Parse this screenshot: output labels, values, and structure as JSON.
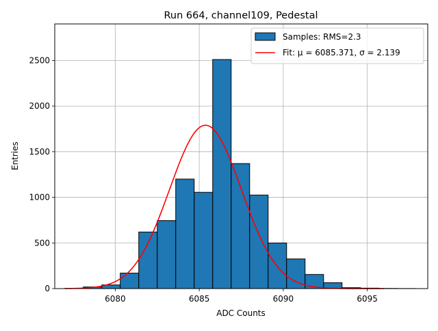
{
  "chart_data": {
    "type": "bar",
    "title": "Run 664, channel109, Pedestal",
    "xlabel": "ADC Counts",
    "ylabel": "Entries",
    "xlim": [
      6076.4,
      6098.6
    ],
    "ylim": [
      0,
      2900
    ],
    "xticks": [
      6080,
      6085,
      6090,
      6095
    ],
    "yticks": [
      0,
      500,
      1000,
      1500,
      2000,
      2500
    ],
    "grid": true,
    "legend_position": "top-right",
    "histogram": {
      "name": "Samples: RMS=2.3",
      "color": "#1f77b4",
      "bin_width": 1.1,
      "bins": [
        {
          "left": 6077.0,
          "value": 2
        },
        {
          "left": 6078.1,
          "value": 18
        },
        {
          "left": 6079.2,
          "value": 40
        },
        {
          "left": 6080.3,
          "value": 170
        },
        {
          "left": 6081.4,
          "value": 620
        },
        {
          "left": 6082.5,
          "value": 745
        },
        {
          "left": 6083.6,
          "value": 1200
        },
        {
          "left": 6084.7,
          "value": 1055
        },
        {
          "left": 6085.8,
          "value": 2510
        },
        {
          "left": 6086.9,
          "value": 1370
        },
        {
          "left": 6088.0,
          "value": 1025
        },
        {
          "left": 6089.1,
          "value": 500
        },
        {
          "left": 6090.2,
          "value": 325
        },
        {
          "left": 6091.3,
          "value": 155
        },
        {
          "left": 6092.4,
          "value": 65
        },
        {
          "left": 6093.5,
          "value": 10
        },
        {
          "left": 6094.6,
          "value": 5
        },
        {
          "left": 6095.7,
          "value": 2
        },
        {
          "left": 6096.8,
          "value": 1
        }
      ]
    },
    "fit": {
      "name": "Fit: μ = 6085.371, σ = 2.139",
      "color": "#ff0000",
      "mu": 6085.371,
      "sigma": 2.139,
      "amplitude": 1790,
      "x_range": [
        6077.0,
        6096.0
      ]
    }
  }
}
